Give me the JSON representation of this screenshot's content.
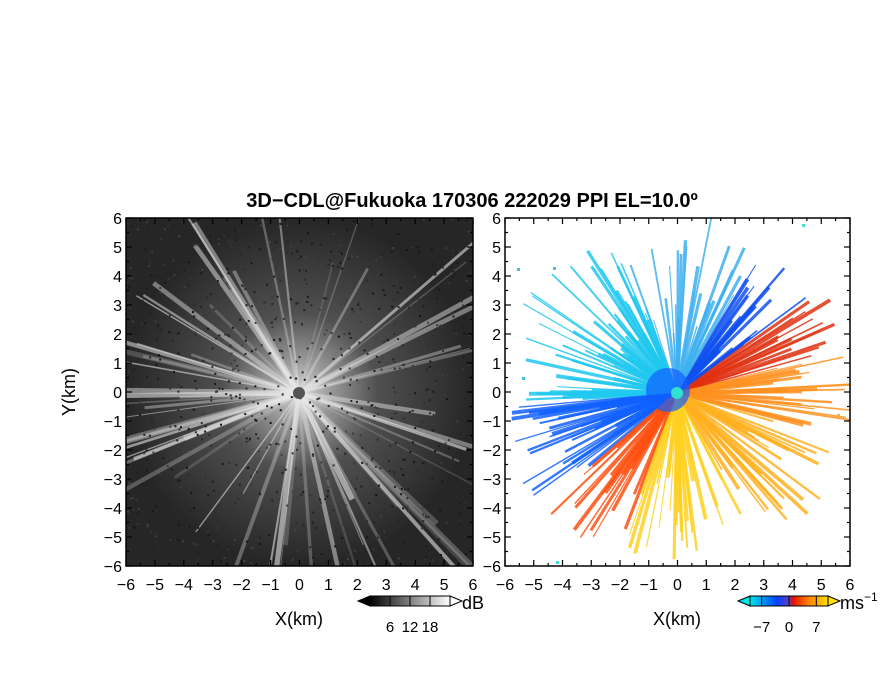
{
  "title": "3D−CDL@Fukuoka 170306 222029 PPI EL=10.0º",
  "chart_data": [
    {
      "type": "heatmap",
      "name": "reflectivity",
      "title": "",
      "xlabel": "X(km)",
      "ylabel": "Y(km)",
      "xlim": [
        -6,
        6
      ],
      "ylim": [
        -6,
        6
      ],
      "xticks": [
        "−6",
        "−5",
        "−4",
        "−3",
        "−2",
        "−1",
        "0",
        "1",
        "2",
        "3",
        "4",
        "5",
        "6"
      ],
      "yticks": [
        "−6",
        "−5",
        "−4",
        "−3",
        "−2",
        "−1",
        "0",
        "1",
        "2",
        "3",
        "4",
        "5",
        "6"
      ],
      "colorbar": {
        "unit": "dB",
        "ticks": [
          "6",
          "12",
          "18"
        ],
        "range": [
          0,
          24
        ],
        "colors": [
          "#000000",
          "#ffffff"
        ]
      },
      "description_values": {
        "background_level_db": 6,
        "peak_center_db": 18
      }
    },
    {
      "type": "heatmap",
      "name": "doppler-velocity",
      "title": "",
      "xlabel": "X(km)",
      "ylabel": "",
      "xlim": [
        -6,
        6
      ],
      "ylim": [
        -6,
        6
      ],
      "xticks": [
        "−6",
        "−5",
        "−4",
        "−3",
        "−2",
        "−1",
        "0",
        "1",
        "2",
        "3",
        "4",
        "5",
        "6"
      ],
      "yticks": [
        "−6",
        "−5",
        "−4",
        "−3",
        "−2",
        "−1",
        "0",
        "1",
        "2",
        "3",
        "4",
        "5",
        "6"
      ],
      "colorbar": {
        "unit": "ms",
        "unit_exponent": "−1",
        "ticks": [
          "−7",
          "0",
          "7"
        ],
        "range": [
          -10,
          10
        ],
        "colors": [
          "#00e5e5",
          "#0040ff",
          "#e01000",
          "#ff8000",
          "#ffe000"
        ]
      }
    }
  ]
}
